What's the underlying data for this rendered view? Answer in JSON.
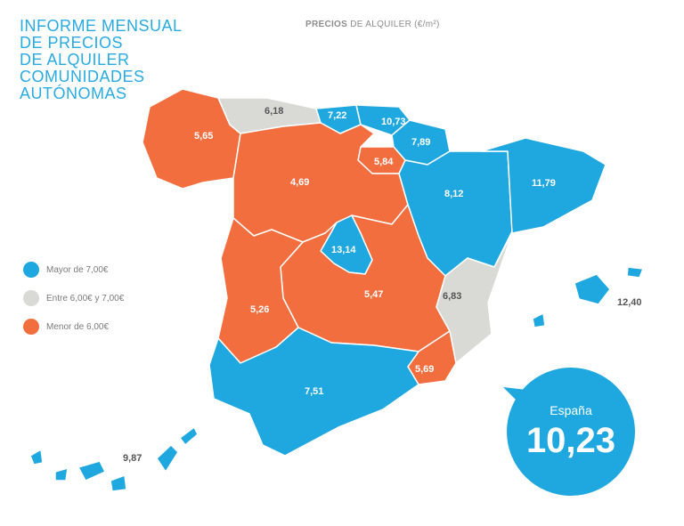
{
  "title_lines": [
    "INFORME MENSUAL",
    "DE PRECIOS",
    "DE ALQUILER",
    "COMUNIDADES",
    "AUTÓNOMAS"
  ],
  "subtitle": {
    "bold": "PRECIOS",
    "rest": "DE ALQUILER (€/m²)"
  },
  "colors": {
    "above": "#1fa8e0",
    "between": "#d9d9d6",
    "below": "#f36e3e",
    "title": "#29abe2"
  },
  "legend": [
    {
      "label": "Mayor de 7,00€",
      "color": "#1fa8e0"
    },
    {
      "label": "Entre 6,00€ y 7,00€",
      "color": "#d9d9d6"
    },
    {
      "label": "Menor de 6,00€",
      "color": "#f36e3e"
    }
  ],
  "regions": {
    "galicia": "5,65",
    "asturias": "6,18",
    "cantabria": "7,22",
    "pais_vasco": "10,73",
    "navarra": "7,89",
    "castilla_leon": "4,69",
    "la_rioja": "5,84",
    "aragon": "8,12",
    "cataluna": "11,79",
    "madrid": "13,14",
    "extremadura": "5,26",
    "castilla_la_mancha": "5,47",
    "valencia": "6,83",
    "murcia": "5,69",
    "andalucia": "7,51",
    "baleares": "12,40",
    "canarias": "9,87"
  },
  "badge": {
    "label": "España",
    "value": "10,23"
  }
}
